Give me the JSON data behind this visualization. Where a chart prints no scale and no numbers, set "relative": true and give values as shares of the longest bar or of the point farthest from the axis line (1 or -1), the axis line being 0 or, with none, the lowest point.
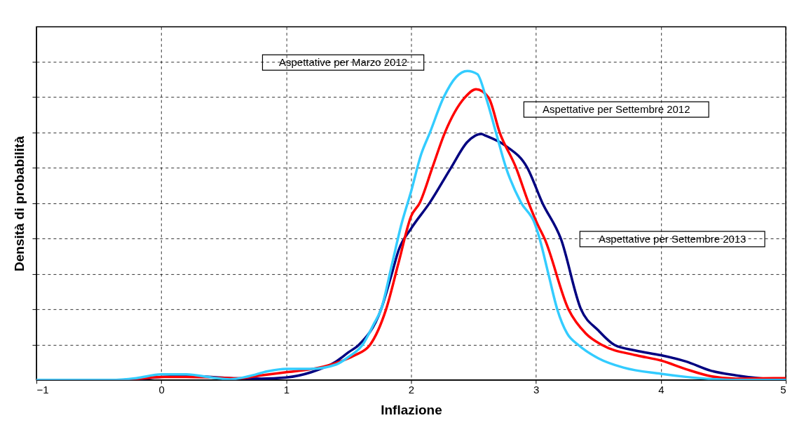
{
  "chart_data": {
    "type": "line",
    "relative": true,
    "xlabel": "Inflazione",
    "ylabel": "Densità di probabilità",
    "xlim": [
      -1,
      5
    ],
    "xticks": [
      -1,
      0,
      1,
      2,
      3,
      4,
      5
    ],
    "grid": true,
    "line_style": "solid",
    "marker": "none",
    "annotations": [
      "Aspettative per Settembre 2013",
      "Aspettative per Settembre 2012",
      "Aspettative per Marzo 2012"
    ],
    "series": [
      {
        "color": "#000080",
        "x": [
          -1,
          -0.4,
          -0.2,
          0,
          0.2,
          0.4,
          0.6,
          0.8,
          1.0,
          1.2,
          1.4,
          1.5,
          1.58,
          1.76,
          1.85,
          1.9,
          2.0,
          2.15,
          2.32,
          2.45,
          2.56,
          2.6,
          2.76,
          2.93,
          3.05,
          3.2,
          3.36,
          3.5,
          3.63,
          3.8,
          4.0,
          4.2,
          4.4,
          4.6,
          4.8,
          5
        ],
        "values": [
          0,
          0,
          0.002,
          0.01,
          0.012,
          0.01,
          0.005,
          0.004,
          0.008,
          0.025,
          0.06,
          0.09,
          0.113,
          0.229,
          0.35,
          0.42,
          0.49,
          0.574,
          0.687,
          0.77,
          0.796,
          0.79,
          0.757,
          0.687,
          0.574,
          0.456,
          0.229,
          0.16,
          0.113,
          0.095,
          0.08,
          0.06,
          0.03,
          0.015,
          0.005,
          0
        ]
      },
      {
        "color": "#ff0000",
        "x": [
          -1,
          -0.3,
          0,
          0.2,
          0.4,
          0.6,
          0.8,
          1.0,
          1.2,
          1.4,
          1.55,
          1.67,
          1.8,
          1.9,
          2.0,
          2.07,
          2.17,
          2.27,
          2.43,
          2.52,
          2.62,
          2.71,
          2.84,
          2.94,
          3.01,
          3.07,
          3.26,
          3.4,
          3.53,
          3.8,
          4.0,
          4.2,
          4.4,
          4.6,
          4.8,
          5
        ],
        "values": [
          0,
          0,
          0.01,
          0.01,
          0.008,
          0.005,
          0.015,
          0.025,
          0.035,
          0.055,
          0.08,
          0.113,
          0.229,
          0.38,
          0.53,
          0.574,
          0.687,
          0.8,
          0.914,
          0.941,
          0.914,
          0.8,
          0.687,
          0.574,
          0.506,
          0.456,
          0.229,
          0.15,
          0.113,
          0.08,
          0.063,
          0.035,
          0.012,
          0.004,
          0.005,
          0.006
        ]
      },
      {
        "color": "#33ccff",
        "x": [
          -1,
          -0.4,
          -0.2,
          0,
          0.2,
          0.4,
          0.55,
          0.7,
          0.85,
          1.0,
          1.2,
          1.4,
          1.5,
          1.61,
          1.7,
          1.76,
          1.85,
          1.92,
          2.0,
          2.08,
          2.15,
          2.26,
          2.36,
          2.45,
          2.53,
          2.6,
          2.68,
          2.76,
          2.88,
          2.99,
          3.03,
          3.1,
          3.17,
          3.25,
          3.34,
          3.5,
          3.7,
          4.0,
          4.2,
          4.4,
          4.6,
          5
        ],
        "values": [
          0,
          0,
          0.006,
          0.018,
          0.018,
          0.008,
          0.002,
          0.012,
          0.028,
          0.036,
          0.036,
          0.05,
          0.075,
          0.113,
          0.18,
          0.229,
          0.38,
          0.5,
          0.61,
          0.73,
          0.8,
          0.914,
          0.98,
          1.0,
          0.99,
          0.914,
          0.8,
          0.687,
          0.574,
          0.506,
          0.456,
          0.342,
          0.229,
          0.15,
          0.113,
          0.07,
          0.04,
          0.02,
          0.01,
          0.003,
          0,
          0
        ]
      }
    ]
  }
}
